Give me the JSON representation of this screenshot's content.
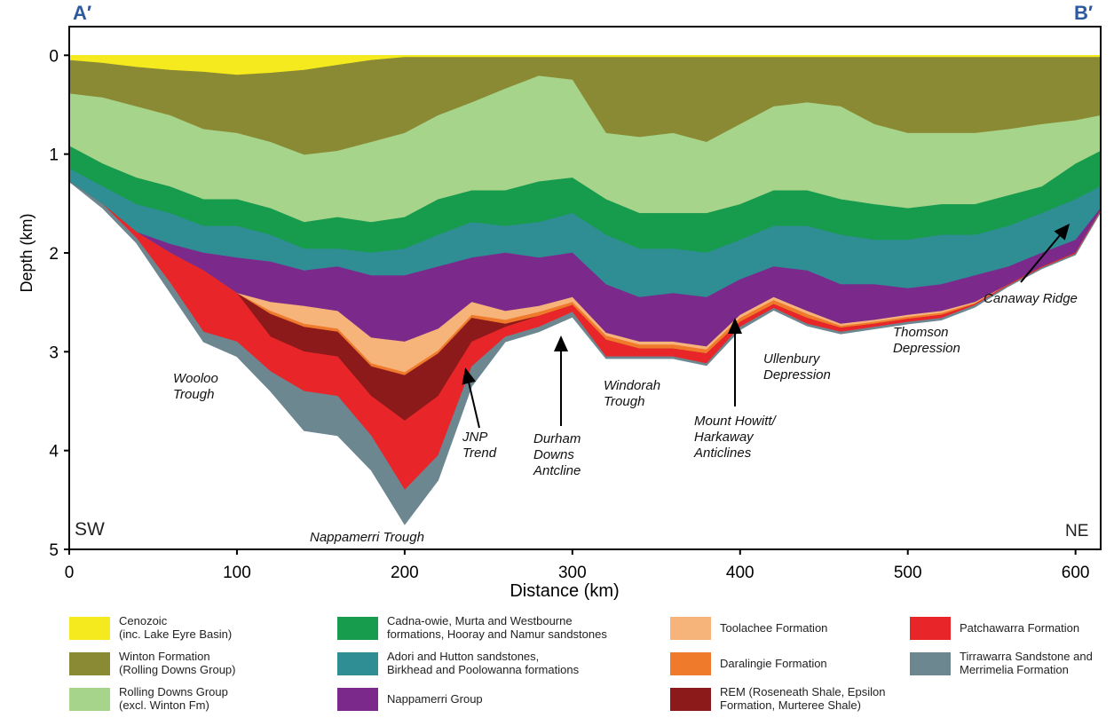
{
  "chart_data": {
    "type": "section",
    "x_label": "Distance (km)",
    "y_label": "Depth (km)",
    "xlim": [
      0,
      615
    ],
    "ylim": [
      5,
      -0.29
    ],
    "xticks": [
      0,
      100,
      200,
      300,
      400,
      500,
      600
    ],
    "yticks": [
      0,
      1,
      2,
      3,
      4,
      5
    ],
    "x": [
      0,
      20,
      40,
      60,
      80,
      100,
      120,
      140,
      160,
      180,
      200,
      220,
      240,
      260,
      280,
      300,
      320,
      340,
      360,
      380,
      400,
      420,
      440,
      460,
      480,
      500,
      520,
      540,
      560,
      580,
      600,
      615
    ],
    "series": [
      {
        "name": "Cenozoic\n(inc. Lake Eyre Basin)",
        "color": "#f4ea1e",
        "values": [
          0.05,
          0.08,
          0.12,
          0.15,
          0.17,
          0.2,
          0.18,
          0.15,
          0.1,
          0.05,
          0.02,
          0.02,
          0.02,
          0.02,
          0.02,
          0.02,
          0.02,
          0.02,
          0.02,
          0.02,
          0.02,
          0.02,
          0.02,
          0.02,
          0.02,
          0.02,
          0.02,
          0.02,
          0.02,
          0.02,
          0.02,
          0.02
        ]
      },
      {
        "name": "Winton Formation\n(Rolling Downs Group)",
        "color": "#8b8a34",
        "values": [
          0.39,
          0.43,
          0.52,
          0.61,
          0.75,
          0.79,
          0.88,
          1.01,
          0.97,
          0.88,
          0.79,
          0.61,
          0.48,
          0.34,
          0.21,
          0.25,
          0.79,
          0.83,
          0.79,
          0.88,
          0.7,
          0.52,
          0.48,
          0.52,
          0.7,
          0.79,
          0.79,
          0.79,
          0.75,
          0.7,
          0.66,
          0.61
        ]
      },
      {
        "name": "Rolling Downs Group\n(excl. Winton Fm)",
        "color": "#a6d48a",
        "values": [
          0.92,
          1.1,
          1.24,
          1.33,
          1.46,
          1.46,
          1.55,
          1.69,
          1.64,
          1.69,
          1.64,
          1.46,
          1.37,
          1.37,
          1.28,
          1.24,
          1.46,
          1.6,
          1.6,
          1.6,
          1.51,
          1.37,
          1.37,
          1.46,
          1.51,
          1.55,
          1.51,
          1.51,
          1.42,
          1.33,
          1.1,
          0.97
        ]
      },
      {
        "name": "Cadna-owie, Murta and Westbourne\nformations, Hooray and Namur sandstones",
        "color": "#179b4d",
        "values": [
          1.15,
          1.33,
          1.51,
          1.6,
          1.73,
          1.73,
          1.82,
          1.96,
          1.96,
          2.0,
          1.96,
          1.82,
          1.69,
          1.73,
          1.69,
          1.6,
          1.82,
          1.96,
          1.96,
          2.0,
          1.87,
          1.73,
          1.73,
          1.82,
          1.87,
          1.87,
          1.82,
          1.82,
          1.73,
          1.6,
          1.46,
          1.33
        ]
      },
      {
        "name": "Adori and Hutton sandstones,\nBirkhead and Poolowanna formations",
        "color": "#2f8e94",
        "values": [
          1.28,
          1.51,
          1.79,
          1.91,
          2.0,
          2.05,
          2.09,
          2.18,
          2.14,
          2.23,
          2.23,
          2.14,
          2.05,
          2.0,
          2.05,
          2.0,
          2.32,
          2.45,
          2.41,
          2.45,
          2.27,
          2.14,
          2.18,
          2.32,
          2.32,
          2.36,
          2.32,
          2.23,
          2.14,
          2.0,
          1.87,
          1.55
        ]
      },
      {
        "name": "Nappamerri Group",
        "color": "#7b2a8c",
        "values": [
          1.28,
          1.51,
          1.79,
          2.0,
          2.18,
          2.41,
          2.5,
          2.54,
          2.59,
          2.86,
          2.9,
          2.77,
          2.5,
          2.59,
          2.54,
          2.45,
          2.81,
          2.9,
          2.9,
          2.95,
          2.63,
          2.45,
          2.59,
          2.72,
          2.68,
          2.63,
          2.59,
          2.5,
          2.32,
          2.14,
          2.0,
          1.57
        ]
      },
      {
        "name": "Toolachee Formation",
        "color": "#f6b47a",
        "values": [
          1.28,
          1.51,
          1.79,
          2.0,
          2.18,
          2.41,
          2.59,
          2.72,
          2.77,
          3.12,
          3.21,
          2.99,
          2.63,
          2.68,
          2.6,
          2.5,
          2.84,
          2.93,
          2.93,
          2.98,
          2.66,
          2.48,
          2.62,
          2.74,
          2.7,
          2.65,
          2.61,
          2.51,
          2.32,
          2.14,
          2.0,
          1.57
        ]
      },
      {
        "name": "Daralingie Formation",
        "color": "#f07a2c",
        "values": [
          1.28,
          1.51,
          1.79,
          2.0,
          2.18,
          2.41,
          2.62,
          2.75,
          2.8,
          3.15,
          3.24,
          3.02,
          2.66,
          2.72,
          2.64,
          2.53,
          2.88,
          2.97,
          2.97,
          3.02,
          2.7,
          2.52,
          2.66,
          2.76,
          2.72,
          2.67,
          2.63,
          2.52,
          2.32,
          2.14,
          2.0,
          1.57
        ]
      },
      {
        "name": "REM (Roseneath Shale, Epsilon\nFormation, Murteree Shale)",
        "color": "#8c1a1a",
        "values": [
          1.28,
          1.51,
          1.79,
          2.0,
          2.18,
          2.41,
          2.85,
          3.0,
          3.05,
          3.45,
          3.7,
          3.45,
          2.9,
          2.75,
          2.64,
          2.53,
          2.88,
          2.97,
          2.97,
          3.02,
          2.7,
          2.52,
          2.66,
          2.76,
          2.72,
          2.67,
          2.63,
          2.52,
          2.32,
          2.14,
          2.0,
          1.57
        ]
      },
      {
        "name": "Patchawarra Formation",
        "color": "#e8262a",
        "values": [
          1.28,
          1.51,
          1.85,
          2.3,
          2.8,
          2.9,
          3.2,
          3.4,
          3.45,
          3.85,
          4.4,
          4.05,
          3.15,
          2.85,
          2.75,
          2.6,
          3.05,
          3.05,
          3.05,
          3.12,
          2.75,
          2.56,
          2.72,
          2.8,
          2.75,
          2.7,
          2.66,
          2.53,
          2.33,
          2.15,
          2.01,
          1.58
        ]
      },
      {
        "name": "Tirrawarra Sandstone and\nMerrimelia Formation",
        "color": "#6d8791",
        "values": [
          1.28,
          1.55,
          1.9,
          2.4,
          2.9,
          3.05,
          3.4,
          3.8,
          3.85,
          4.2,
          4.75,
          4.3,
          3.35,
          2.9,
          2.8,
          2.65,
          3.07,
          3.07,
          3.07,
          3.14,
          2.78,
          2.58,
          2.74,
          2.82,
          2.77,
          2.72,
          2.68,
          2.55,
          2.34,
          2.16,
          2.02,
          1.59
        ]
      }
    ],
    "annotations": [
      "A′",
      "B′",
      "SW",
      "NE",
      "Wooloo\nTrough",
      "Nappamerri Trough",
      "JNP\nTrend",
      "Durham\nDowns\nAntcline",
      "Windorah\nTrough",
      "Mount Howitt/\nHarkaway\nAnticlines",
      "Ullenbury\nDepression",
      "Thomson\nDepression",
      "Canaway Ridge"
    ]
  }
}
